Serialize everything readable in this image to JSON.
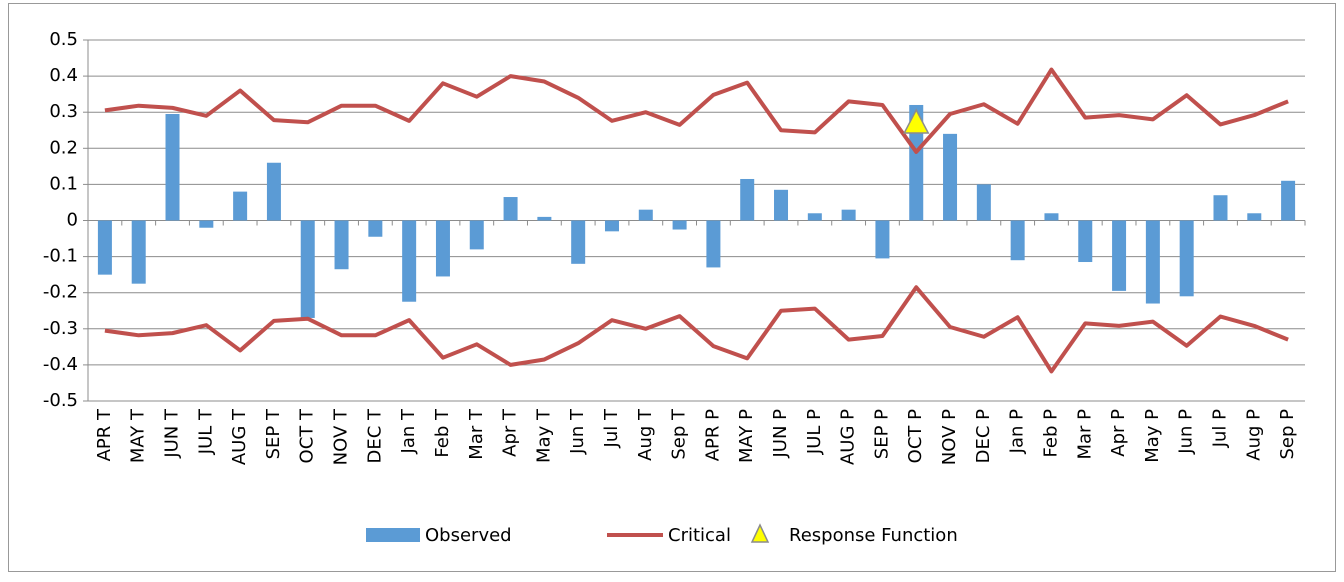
{
  "chart_data": {
    "type": "bar-line",
    "categories": [
      "APR T",
      "MAY T",
      "JUN T",
      "JUL T",
      "AUG T",
      "SEP T",
      "OCT T",
      "NOV T",
      "DEC T",
      "Jan T",
      "Feb T",
      "Mar T",
      "Apr T",
      "May T",
      "Jun T",
      "Jul T",
      "Aug T",
      "Sep T",
      "APR P",
      "MAY P",
      "JUN P",
      "JUL P",
      "AUG P",
      "SEP P",
      "OCT P",
      "NOV P",
      "DEC P",
      "Jan P",
      "Feb P",
      "Mar P",
      "Apr P",
      "May P",
      "Jun P",
      "Jul P",
      "Aug P",
      "Sep P"
    ],
    "series": [
      {
        "name": "Observed",
        "kind": "bar",
        "color": "#5b9bd5",
        "values": [
          -0.15,
          -0.175,
          0.295,
          -0.02,
          0.08,
          0.16,
          -0.27,
          -0.135,
          -0.045,
          -0.225,
          -0.155,
          -0.08,
          0.065,
          0.01,
          -0.12,
          -0.03,
          0.03,
          -0.025,
          -0.13,
          0.115,
          0.085,
          0.02,
          0.03,
          -0.105,
          0.32,
          0.24,
          0.1,
          -0.11,
          0.02,
          -0.115,
          -0.195,
          -0.23,
          -0.21,
          0.07,
          0.02,
          0.11
        ]
      },
      {
        "name": "Critical",
        "kind": "line",
        "color": "#c0504d",
        "values": [
          0.305,
          0.318,
          0.312,
          0.29,
          0.36,
          0.278,
          0.272,
          0.318,
          0.318,
          0.276,
          0.38,
          0.343,
          0.4,
          0.385,
          0.34,
          0.276,
          0.3,
          0.265,
          0.348,
          0.382,
          0.25,
          0.244,
          0.33,
          0.32,
          0.19,
          0.295,
          0.322,
          0.268,
          0.418,
          0.285,
          0.292,
          0.28,
          0.347,
          0.266,
          0.292,
          0.33
        ],
        "lower": [
          -0.305,
          -0.318,
          -0.312,
          -0.29,
          -0.36,
          -0.278,
          -0.272,
          -0.318,
          -0.318,
          -0.276,
          -0.38,
          -0.343,
          -0.4,
          -0.385,
          -0.34,
          -0.276,
          -0.3,
          -0.265,
          -0.348,
          -0.382,
          -0.25,
          -0.244,
          -0.33,
          -0.32,
          -0.185,
          -0.295,
          -0.322,
          -0.268,
          -0.418,
          -0.285,
          -0.292,
          -0.28,
          -0.347,
          -0.266,
          -0.292,
          -0.33
        ]
      },
      {
        "name": "Response Function",
        "kind": "marker",
        "color": "#ffff00",
        "values": [
          null,
          null,
          null,
          null,
          null,
          null,
          null,
          null,
          null,
          null,
          null,
          null,
          null,
          null,
          null,
          null,
          null,
          null,
          null,
          null,
          null,
          null,
          null,
          null,
          0.27,
          null,
          null,
          null,
          null,
          null,
          null,
          null,
          null,
          null,
          null,
          null
        ]
      }
    ],
    "ylim": [
      -0.5,
      0.5
    ],
    "yticks": [
      -0.5,
      -0.4,
      -0.3,
      -0.2,
      -0.1,
      0,
      0.1,
      0.2,
      0.3,
      0.4,
      0.5
    ],
    "grid": true
  }
}
